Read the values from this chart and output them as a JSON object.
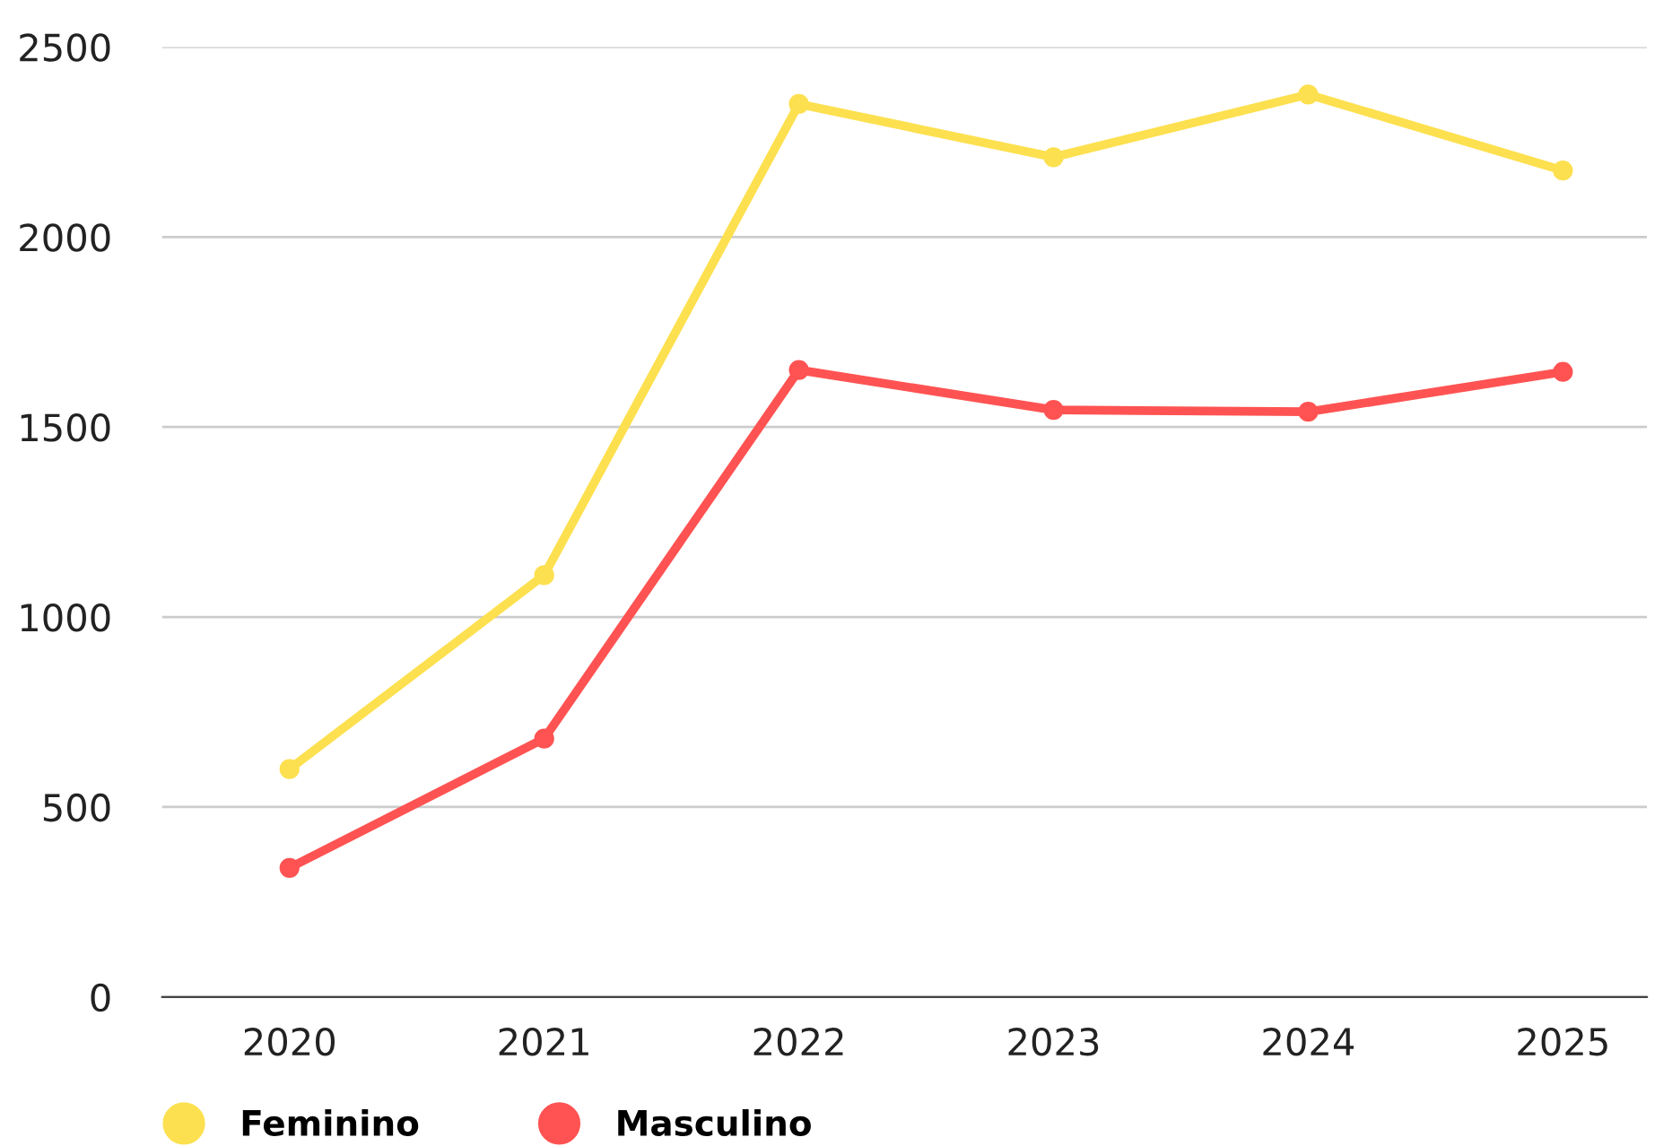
{
  "chart_data": {
    "type": "line",
    "categories": [
      "2020",
      "2021",
      "2022",
      "2023",
      "2024",
      "2025"
    ],
    "series": [
      {
        "name": "Feminino",
        "color": "#fde04f",
        "values": [
          600,
          1110,
          2350,
          2210,
          2375,
          2175
        ]
      },
      {
        "name": "Masculino",
        "color": "#fe5352",
        "values": [
          340,
          680,
          1650,
          1545,
          1540,
          1645
        ]
      }
    ],
    "ylim": [
      0,
      2500
    ],
    "yticks": [
      0,
      500,
      1000,
      1500,
      2000,
      2500
    ],
    "grid": "y",
    "legend": "bottom left",
    "marker": "circle",
    "line_style": "solid"
  }
}
